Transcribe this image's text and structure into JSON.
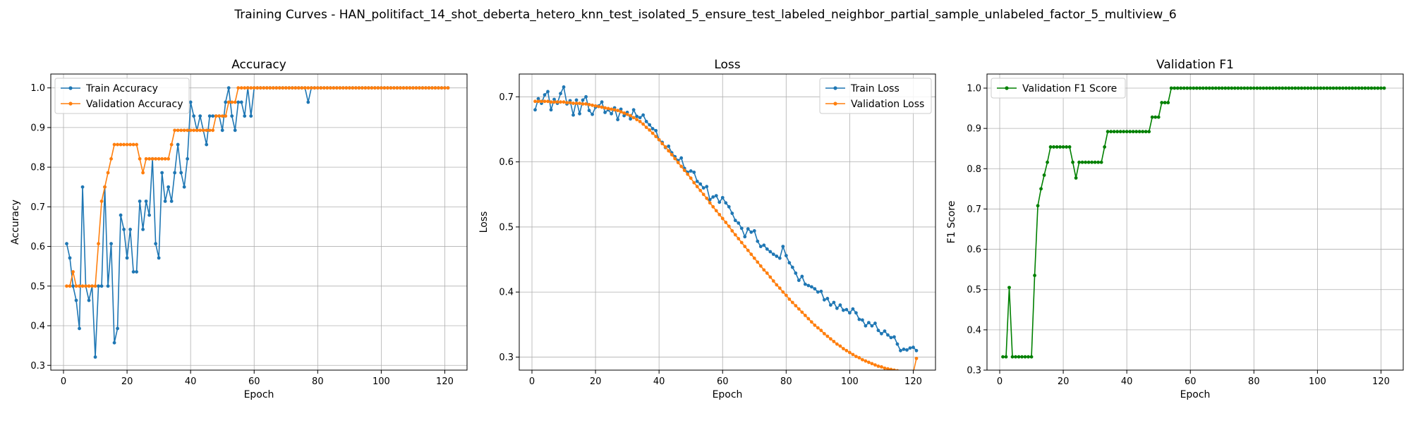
{
  "suptitle": "Training Curves - HAN_politifact_14_shot_deberta_hetero_knn_test_isolated_5_ensure_test_labeled_neighbor_partial_sample_unlabeled_factor_5_multiview_6",
  "chart_data": [
    {
      "type": "line",
      "title": "Accuracy",
      "xlabel": "Epoch",
      "ylabel": "Accuracy",
      "xlim": [
        -4,
        127
      ],
      "ylim": [
        0.288,
        1.035
      ],
      "xticks": [
        0,
        20,
        40,
        60,
        80,
        100,
        120
      ],
      "yticks": [
        0.3,
        0.4,
        0.5,
        0.6,
        0.7,
        0.8,
        0.9,
        1.0
      ],
      "ytick_labels": [
        "0.3",
        "0.4",
        "0.5",
        "0.6",
        "0.7",
        "0.8",
        "0.9",
        "1.0"
      ],
      "grid": true,
      "legend_loc": "upper-left",
      "series": [
        {
          "name": "Train Accuracy",
          "color": "#1f77b4",
          "x_start": 1,
          "values": [
            0.607,
            0.571,
            0.5,
            0.464,
            0.393,
            0.75,
            0.5,
            0.464,
            0.5,
            0.321,
            0.5,
            0.5,
            0.75,
            0.5,
            0.607,
            0.357,
            0.393,
            0.679,
            0.643,
            0.571,
            0.643,
            0.536,
            0.536,
            0.714,
            0.643,
            0.714,
            0.679,
            0.821,
            0.607,
            0.571,
            0.786,
            0.714,
            0.75,
            0.714,
            0.786,
            0.857,
            0.786,
            0.75,
            0.821,
            0.964,
            0.929,
            0.893,
            0.929,
            0.893,
            0.857,
            0.929,
            0.929,
            0.929,
            0.929,
            0.893,
            0.964,
            1.0,
            0.929,
            0.893,
            0.964,
            0.964,
            0.929,
            1.0,
            0.929,
            1.0,
            1.0,
            1.0,
            1.0,
            1.0,
            1.0,
            1.0,
            1.0,
            1.0,
            1.0,
            1.0,
            1.0,
            1.0,
            1.0,
            1.0,
            1.0,
            1.0,
            0.964,
            1.0,
            1.0,
            1.0,
            1.0,
            1.0,
            1.0,
            1.0,
            1.0,
            1.0,
            1.0,
            1.0,
            1.0,
            1.0,
            1.0,
            1.0,
            1.0,
            1.0,
            1.0,
            1.0,
            1.0,
            1.0,
            1.0,
            1.0,
            1.0,
            1.0,
            1.0,
            1.0,
            1.0,
            1.0,
            1.0,
            1.0,
            1.0,
            1.0,
            1.0,
            1.0,
            1.0,
            1.0,
            1.0,
            1.0,
            1.0,
            1.0,
            1.0,
            1.0,
            1.0
          ]
        },
        {
          "name": "Validation Accuracy",
          "color": "#ff7f0e",
          "x_start": 1,
          "values": [
            0.5,
            0.5,
            0.536,
            0.5,
            0.5,
            0.5,
            0.5,
            0.5,
            0.5,
            0.5,
            0.607,
            0.714,
            0.75,
            0.786,
            0.821,
            0.857,
            0.857,
            0.857,
            0.857,
            0.857,
            0.857,
            0.857,
            0.857,
            0.821,
            0.786,
            0.821,
            0.821,
            0.821,
            0.821,
            0.821,
            0.821,
            0.821,
            0.821,
            0.857,
            0.893,
            0.893,
            0.893,
            0.893,
            0.893,
            0.893,
            0.893,
            0.893,
            0.893,
            0.893,
            0.893,
            0.893,
            0.893,
            0.929,
            0.929,
            0.929,
            0.929,
            0.964,
            0.964,
            0.964,
            1.0,
            1.0,
            1.0,
            1.0,
            1.0,
            1.0,
            1.0,
            1.0,
            1.0,
            1.0,
            1.0,
            1.0,
            1.0,
            1.0,
            1.0,
            1.0,
            1.0,
            1.0,
            1.0,
            1.0,
            1.0,
            1.0,
            1.0,
            1.0,
            1.0,
            1.0,
            1.0,
            1.0,
            1.0,
            1.0,
            1.0,
            1.0,
            1.0,
            1.0,
            1.0,
            1.0,
            1.0,
            1.0,
            1.0,
            1.0,
            1.0,
            1.0,
            1.0,
            1.0,
            1.0,
            1.0,
            1.0,
            1.0,
            1.0,
            1.0,
            1.0,
            1.0,
            1.0,
            1.0,
            1.0,
            1.0,
            1.0,
            1.0,
            1.0,
            1.0,
            1.0,
            1.0,
            1.0,
            1.0,
            1.0,
            1.0,
            1.0
          ]
        }
      ]
    },
    {
      "type": "line",
      "title": "Loss",
      "xlabel": "Epoch",
      "ylabel": "Loss",
      "xlim": [
        -4,
        127
      ],
      "ylim": [
        0.28,
        0.735
      ],
      "xticks": [
        0,
        20,
        40,
        60,
        80,
        100,
        120
      ],
      "yticks": [
        0.3,
        0.4,
        0.5,
        0.6,
        0.7
      ],
      "ytick_labels": [
        "0.3",
        "0.4",
        "0.5",
        "0.6",
        "0.7"
      ],
      "grid": true,
      "legend_loc": "upper-right",
      "series": [
        {
          "name": "Train Loss",
          "color": "#1f77b4",
          "x_start": 1,
          "values": [
            0.68,
            0.697,
            0.69,
            0.703,
            0.708,
            0.68,
            0.696,
            0.69,
            0.705,
            0.715,
            0.689,
            0.694,
            0.672,
            0.695,
            0.674,
            0.695,
            0.7,
            0.679,
            0.673,
            0.684,
            0.686,
            0.692,
            0.676,
            0.68,
            0.674,
            0.683,
            0.665,
            0.681,
            0.671,
            0.676,
            0.666,
            0.68,
            0.67,
            0.668,
            0.672,
            0.662,
            0.657,
            0.651,
            0.648,
            0.634,
            0.63,
            0.622,
            0.624,
            0.614,
            0.608,
            0.602,
            0.606,
            0.59,
            0.584,
            0.586,
            0.584,
            0.57,
            0.566,
            0.56,
            0.562,
            0.542,
            0.546,
            0.548,
            0.538,
            0.545,
            0.537,
            0.531,
            0.521,
            0.51,
            0.506,
            0.498,
            0.485,
            0.497,
            0.492,
            0.494,
            0.478,
            0.47,
            0.472,
            0.466,
            0.462,
            0.458,
            0.455,
            0.452,
            0.47,
            0.456,
            0.445,
            0.438,
            0.429,
            0.418,
            0.424,
            0.412,
            0.41,
            0.408,
            0.405,
            0.4,
            0.401,
            0.388,
            0.39,
            0.38,
            0.384,
            0.375,
            0.38,
            0.372,
            0.373,
            0.368,
            0.374,
            0.368,
            0.358,
            0.357,
            0.348,
            0.353,
            0.348,
            0.352,
            0.341,
            0.336,
            0.34,
            0.334,
            0.33,
            0.331,
            0.32,
            0.31,
            0.312,
            0.311,
            0.314,
            0.315,
            0.31
          ]
        },
        {
          "name": "Validation Loss",
          "color": "#ff7f0e",
          "x_start": 1,
          "values": [
            0.693,
            0.693,
            0.693,
            0.693,
            0.693,
            0.692,
            0.692,
            0.692,
            0.692,
            0.692,
            0.691,
            0.691,
            0.69,
            0.69,
            0.69,
            0.689,
            0.689,
            0.688,
            0.687,
            0.686,
            0.685,
            0.684,
            0.683,
            0.682,
            0.681,
            0.68,
            0.679,
            0.677,
            0.675,
            0.673,
            0.671,
            0.668,
            0.665,
            0.662,
            0.658,
            0.653,
            0.649,
            0.644,
            0.639,
            0.634,
            0.628,
            0.623,
            0.617,
            0.611,
            0.605,
            0.599,
            0.593,
            0.587,
            0.581,
            0.575,
            0.568,
            0.562,
            0.556,
            0.55,
            0.544,
            0.537,
            0.531,
            0.525,
            0.519,
            0.513,
            0.507,
            0.501,
            0.494,
            0.488,
            0.482,
            0.476,
            0.47,
            0.464,
            0.458,
            0.452,
            0.446,
            0.44,
            0.434,
            0.429,
            0.423,
            0.417,
            0.411,
            0.406,
            0.4,
            0.395,
            0.389,
            0.384,
            0.379,
            0.374,
            0.369,
            0.364,
            0.359,
            0.354,
            0.349,
            0.345,
            0.341,
            0.336,
            0.332,
            0.328,
            0.324,
            0.32,
            0.317,
            0.313,
            0.31,
            0.307,
            0.304,
            0.301,
            0.299,
            0.296,
            0.294,
            0.292,
            0.29,
            0.288,
            0.286,
            0.285,
            0.283,
            0.282,
            0.281,
            0.28,
            0.279,
            0.278,
            0.278,
            0.277,
            0.277,
            0.276,
            0.298
          ]
        }
      ]
    },
    {
      "type": "line",
      "title": "Validation F1",
      "xlabel": "Epoch",
      "ylabel": "F1 Score",
      "xlim": [
        -4,
        127
      ],
      "ylim": [
        0.3,
        1.035
      ],
      "xticks": [
        0,
        20,
        40,
        60,
        80,
        100,
        120
      ],
      "yticks": [
        0.3,
        0.4,
        0.5,
        0.6,
        0.7,
        0.8,
        0.9,
        1.0
      ],
      "ytick_labels": [
        "0.3",
        "0.4",
        "0.5",
        "0.6",
        "0.7",
        "0.8",
        "0.9",
        "1.0"
      ],
      "grid": true,
      "legend_loc": "upper-left",
      "series": [
        {
          "name": "Validation F1 Score",
          "color": "#008000",
          "x_start": 1,
          "values": [
            0.333,
            0.333,
            0.505,
            0.333,
            0.333,
            0.333,
            0.333,
            0.333,
            0.333,
            0.333,
            0.535,
            0.708,
            0.75,
            0.784,
            0.816,
            0.854,
            0.854,
            0.854,
            0.854,
            0.854,
            0.854,
            0.854,
            0.816,
            0.777,
            0.816,
            0.816,
            0.816,
            0.816,
            0.816,
            0.816,
            0.816,
            0.816,
            0.854,
            0.892,
            0.892,
            0.892,
            0.892,
            0.892,
            0.892,
            0.892,
            0.892,
            0.892,
            0.892,
            0.892,
            0.892,
            0.892,
            0.892,
            0.928,
            0.928,
            0.928,
            0.964,
            0.964,
            0.964,
            1.0,
            1.0,
            1.0,
            1.0,
            1.0,
            1.0,
            1.0,
            1.0,
            1.0,
            1.0,
            1.0,
            1.0,
            1.0,
            1.0,
            1.0,
            1.0,
            1.0,
            1.0,
            1.0,
            1.0,
            1.0,
            1.0,
            1.0,
            1.0,
            1.0,
            1.0,
            1.0,
            1.0,
            1.0,
            1.0,
            1.0,
            1.0,
            1.0,
            1.0,
            1.0,
            1.0,
            1.0,
            1.0,
            1.0,
            1.0,
            1.0,
            1.0,
            1.0,
            1.0,
            1.0,
            1.0,
            1.0,
            1.0,
            1.0,
            1.0,
            1.0,
            1.0,
            1.0,
            1.0,
            1.0,
            1.0,
            1.0,
            1.0,
            1.0,
            1.0,
            1.0,
            1.0,
            1.0,
            1.0,
            1.0,
            1.0,
            1.0,
            1.0
          ]
        }
      ]
    }
  ]
}
